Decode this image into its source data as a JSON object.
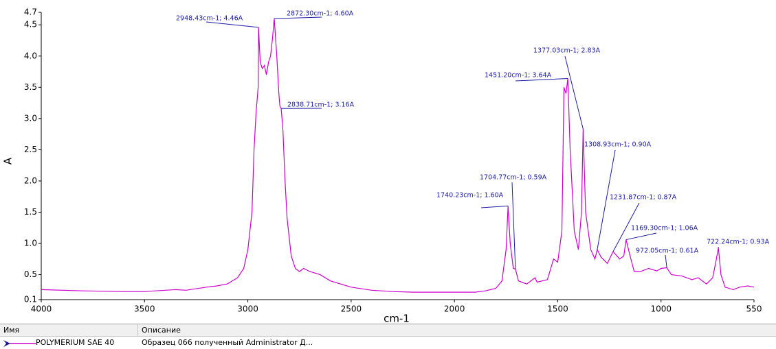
{
  "chart_data": {
    "type": "line",
    "x_label": "cm-1",
    "y_label": "A",
    "xlim": [
      4000,
      550
    ],
    "ylim": [
      0.1,
      4.7
    ],
    "xticks": [
      4000,
      3500,
      3000,
      2500,
      2000,
      1500,
      1000,
      550
    ],
    "yticks": [
      0.1,
      0.5,
      {
        "value": 1.0,
        "label": "1.0"
      },
      1.5,
      {
        "value": 2.0,
        "label": "2.0"
      },
      2.5,
      {
        "value": 3.0,
        "label": "3.0"
      },
      3.5,
      {
        "value": 4.0,
        "label": "4.0"
      },
      4.5,
      4.7
    ],
    "series": [
      {
        "name": "POLYMERIUM SAE 40",
        "color": "#cc00cc",
        "x": [
          4000,
          3800,
          3600,
          3500,
          3400,
          3350,
          3300,
          3200,
          3150,
          3100,
          3050,
          3020,
          3000,
          2980,
          2970,
          2960,
          2950,
          2948.43,
          2940,
          2930,
          2920,
          2910,
          2900,
          2890,
          2880,
          2872.3,
          2860,
          2850,
          2845,
          2838.71,
          2830,
          2820,
          2810,
          2790,
          2770,
          2750,
          2730,
          2700,
          2650,
          2600,
          2500,
          2400,
          2300,
          2200,
          2100,
          2000,
          1900,
          1850,
          1800,
          1770,
          1750,
          1740.23,
          1730,
          1715,
          1704.77,
          1690,
          1650,
          1610,
          1600,
          1550,
          1520,
          1500,
          1480,
          1470,
          1460,
          1451.2,
          1440,
          1420,
          1400,
          1385,
          1377.03,
          1365,
          1340,
          1320,
          1308.93,
          1290,
          1260,
          1231.87,
          1200,
          1180,
          1169.3,
          1150,
          1130,
          1100,
          1060,
          1020,
          1000,
          972.05,
          950,
          900,
          850,
          820,
          780,
          750,
          735,
          722.24,
          710,
          690,
          650,
          620,
          580,
          550
        ],
        "values": [
          0.26,
          0.24,
          0.23,
          0.23,
          0.25,
          0.26,
          0.25,
          0.3,
          0.32,
          0.35,
          0.45,
          0.6,
          0.9,
          1.5,
          2.5,
          3.1,
          3.5,
          4.46,
          3.9,
          3.8,
          3.85,
          3.7,
          3.9,
          4.0,
          4.3,
          4.6,
          4.0,
          3.4,
          3.2,
          3.16,
          2.8,
          2.0,
          1.4,
          0.8,
          0.6,
          0.55,
          0.6,
          0.55,
          0.5,
          0.4,
          0.3,
          0.25,
          0.23,
          0.22,
          0.22,
          0.22,
          0.22,
          0.24,
          0.28,
          0.4,
          0.9,
          1.6,
          1.0,
          0.6,
          0.59,
          0.4,
          0.35,
          0.45,
          0.38,
          0.42,
          0.75,
          0.7,
          1.2,
          3.5,
          3.4,
          3.64,
          2.5,
          1.2,
          0.9,
          1.5,
          2.83,
          1.5,
          0.9,
          0.75,
          0.9,
          0.78,
          0.68,
          0.87,
          0.75,
          0.8,
          1.06,
          0.8,
          0.55,
          0.55,
          0.6,
          0.56,
          0.6,
          0.61,
          0.5,
          0.48,
          0.42,
          0.45,
          0.35,
          0.45,
          0.7,
          0.93,
          0.5,
          0.3,
          0.26,
          0.3,
          0.32,
          0.3
        ]
      }
    ],
    "annotations": [
      "2948.43cm-1; 4.46A",
      "2872.30cm-1; 4.60A",
      "2838.71cm-1; 3.16A",
      "1377.03cm-1; 2.83A",
      "1451.20cm-1; 3.64A",
      "1704.77cm-1; 0.59A",
      "1740.23cm-1; 1.60A",
      "1308.93cm-1; 0.90A",
      "1231.87cm-1; 0.87A",
      "1169.30cm-1; 1.06A",
      "972.05cm-1; 0.61A",
      "722.24cm-1; 0.93A"
    ],
    "annotation_color": "#1a1aa8"
  },
  "table": {
    "columns": [
      "Имя",
      "Описание"
    ],
    "rows": [
      {
        "description": "Образец 066 полученный Administrator Д..."
      }
    ]
  }
}
